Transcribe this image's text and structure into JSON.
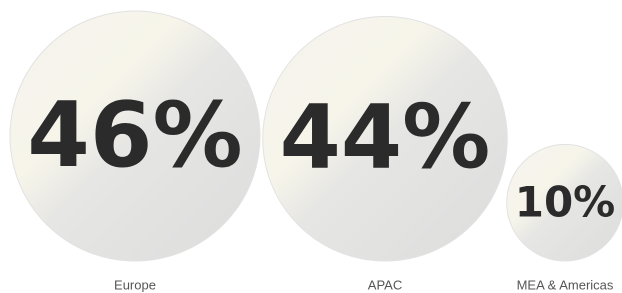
{
  "chart_data": {
    "type": "bubble",
    "categories": [
      "Europe",
      "APAC",
      "MEA & Americas"
    ],
    "values": [
      46,
      44,
      10
    ],
    "value_labels": [
      "46%",
      "44%",
      "10%"
    ],
    "color": "#ececea"
  }
}
